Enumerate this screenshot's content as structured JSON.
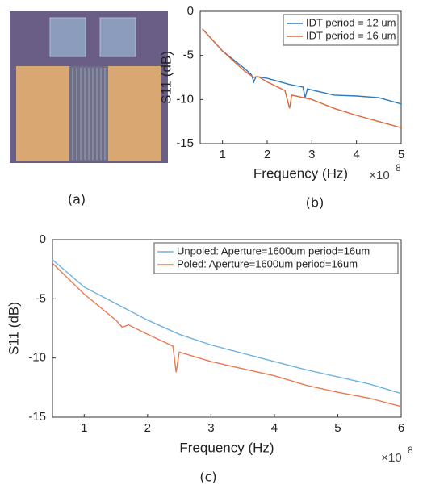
{
  "image_caption": "(a)",
  "chart_data": [
    {
      "type": "line",
      "caption": "(b)",
      "x_label": "Frequency (Hz)",
      "y_label": "S11 (dB)",
      "x_multiplier": "×10",
      "x_multiplier_exponent": "8",
      "xlim": [
        0.5,
        5
      ],
      "xticks": [
        1,
        2,
        3,
        4,
        5
      ],
      "ylim": [
        -15,
        0
      ],
      "yticks": [
        0,
        -5,
        -10,
        -15
      ],
      "legend": "upper right",
      "series": [
        {
          "name": "IDT period = 12 um",
          "color": "#2b7bbf",
          "x": [
            0.55,
            1,
            1.5,
            1.65,
            1.7,
            1.75,
            2,
            2.5,
            2.8,
            2.85,
            2.9,
            3.5,
            4,
            4.5,
            5
          ],
          "values": [
            -2,
            -4.5,
            -6.5,
            -7.2,
            -8,
            -7.4,
            -7.6,
            -8.3,
            -8.6,
            -9.8,
            -8.8,
            -9.5,
            -9.6,
            -9.8,
            -10.5
          ]
        },
        {
          "name": "IDT period = 16 um",
          "color": "#e0693a",
          "x": [
            0.55,
            1,
            1.5,
            1.7,
            1.8,
            2,
            2.4,
            2.5,
            2.55,
            3,
            3.5,
            4,
            4.5,
            5
          ],
          "values": [
            -2,
            -4.5,
            -6.8,
            -7.5,
            -7.4,
            -8,
            -9,
            -11,
            -9.5,
            -10,
            -11,
            -11.8,
            -12.5,
            -13.2
          ]
        }
      ]
    },
    {
      "type": "line",
      "caption": "(c)",
      "x_label": "Frequency (Hz)",
      "y_label": "S11 (dB)",
      "x_multiplier": "×10",
      "x_multiplier_exponent": "8",
      "xlim": [
        0.5,
        6
      ],
      "xticks": [
        1,
        2,
        3,
        4,
        5,
        6
      ],
      "ylim": [
        -15,
        0
      ],
      "yticks": [
        0,
        -5,
        -10,
        -15
      ],
      "legend": "upper right",
      "series": [
        {
          "name": "Unpoled: Aperture=1600um period=16um",
          "color": "#6fb3e0",
          "x": [
            0.5,
            1,
            1.5,
            2,
            2.5,
            3,
            3.5,
            4,
            4.5,
            5,
            5.5,
            6
          ],
          "values": [
            -1.7,
            -4,
            -5.4,
            -6.8,
            -8,
            -8.9,
            -9.6,
            -10.3,
            -11,
            -11.6,
            -12.2,
            -13
          ]
        },
        {
          "name": "Poled: Aperture=1600um period=16um",
          "color": "#e87a50",
          "x": [
            0.5,
            1,
            1.5,
            1.6,
            1.7,
            2,
            2.4,
            2.45,
            2.5,
            3,
            3.5,
            4,
            4.5,
            5,
            5.5,
            6
          ],
          "values": [
            -2,
            -4.6,
            -6.8,
            -7.4,
            -7.2,
            -8,
            -9,
            -11.2,
            -9.5,
            -10.3,
            -10.9,
            -11.5,
            -12.3,
            -12.9,
            -13.4,
            -14.1
          ]
        }
      ]
    }
  ]
}
